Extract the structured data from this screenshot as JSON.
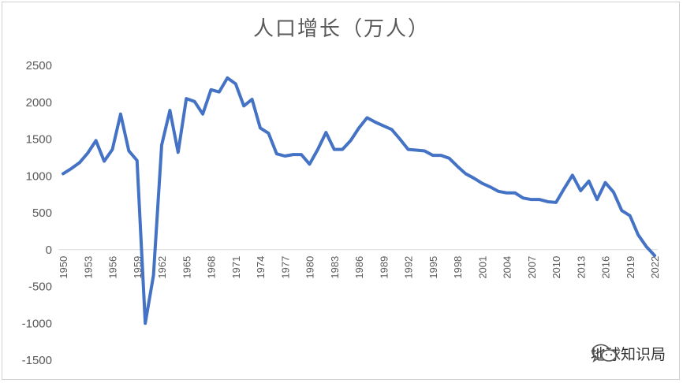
{
  "chart_data": {
    "type": "line",
    "title": "人口增长（万人）",
    "xlabel": "",
    "ylabel": "",
    "ylim": [
      -1500,
      2500
    ],
    "yticks": [
      -1500,
      -1000,
      -500,
      0,
      500,
      1000,
      1500,
      2000,
      2500
    ],
    "xtick_labels": [
      "1950",
      "1953",
      "1956",
      "1959",
      "1962",
      "1965",
      "1968",
      "1971",
      "1974",
      "1977",
      "1980",
      "1983",
      "1986",
      "1989",
      "1992",
      "1995",
      "1998",
      "2001",
      "2004",
      "2007",
      "2010",
      "2013",
      "2016",
      "2019",
      "2022"
    ],
    "grid": false,
    "line_color": "#4472C4",
    "series": [
      {
        "x": [
          1950,
          1951,
          1952,
          1953,
          1954,
          1955,
          1956,
          1957,
          1958,
          1959,
          1960,
          1961,
          1962,
          1963,
          1964,
          1965,
          1966,
          1967,
          1968,
          1969,
          1970,
          1971,
          1972,
          1973,
          1974,
          1975,
          1976,
          1977,
          1978,
          1979,
          1980,
          1981,
          1982,
          1983,
          1984,
          1985,
          1986,
          1987,
          1988,
          1989,
          1990,
          1991,
          1992,
          1993,
          1994,
          1995,
          1996,
          1997,
          1998,
          1999,
          2000,
          2001,
          2002,
          2003,
          2004,
          2005,
          2006,
          2007,
          2008,
          2009,
          2010,
          2011,
          2012,
          2013,
          2014,
          2015,
          2016,
          2017,
          2018,
          2019,
          2020,
          2021,
          2022
        ],
        "values": [
          1030,
          1100,
          1180,
          1310,
          1480,
          1200,
          1360,
          1840,
          1340,
          1210,
          -1000,
          -350,
          1420,
          1890,
          1320,
          2050,
          2010,
          1840,
          2170,
          2140,
          2330,
          2250,
          1950,
          2040,
          1650,
          1580,
          1300,
          1270,
          1290,
          1290,
          1160,
          1360,
          1590,
          1360,
          1360,
          1480,
          1650,
          1790,
          1730,
          1680,
          1630,
          1500,
          1360,
          1350,
          1340,
          1280,
          1280,
          1240,
          1130,
          1030,
          970,
          900,
          850,
          790,
          770,
          770,
          700,
          680,
          680,
          650,
          640,
          830,
          1010,
          800,
          930,
          680,
          910,
          780,
          530,
          460,
          200,
          40,
          -80
        ]
      }
    ]
  },
  "watermark": {
    "icon": "wechat-icon",
    "text": "地球知识局"
  }
}
